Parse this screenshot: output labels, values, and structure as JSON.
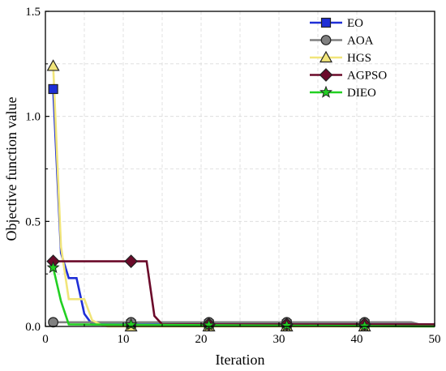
{
  "chart_data": {
    "type": "line",
    "title": "",
    "xlabel": "Iteration",
    "ylabel": "Objective function value",
    "xlim": [
      0,
      50
    ],
    "ylim": [
      0,
      1.5
    ],
    "xticks": [
      0,
      10,
      20,
      30,
      40,
      50
    ],
    "yticks": [
      0.0,
      0.5,
      1.0,
      1.5
    ],
    "xtick_labels": [
      "0",
      "10",
      "20",
      "30",
      "40",
      "50"
    ],
    "ytick_labels": [
      "0.0",
      "0.5",
      "1.0",
      "1.5"
    ],
    "grid": true,
    "legend_position": "top-right",
    "marker_x": [
      1,
      11,
      21,
      31,
      41
    ],
    "series": [
      {
        "name": "EO",
        "color": "#1f2fd6",
        "marker": "square",
        "x": [
          1,
          2,
          3,
          4,
          5,
          6,
          7,
          8,
          50
        ],
        "y": [
          1.13,
          0.35,
          0.23,
          0.23,
          0.06,
          0.01,
          0.01,
          0.01,
          0.01
        ]
      },
      {
        "name": "AOA",
        "color": "#808080",
        "marker": "circle",
        "x": [
          1,
          41,
          47,
          48,
          50
        ],
        "y": [
          0.02,
          0.02,
          0.02,
          0.01,
          0.01
        ]
      },
      {
        "name": "HGS",
        "color": "#f1e57a",
        "marker": "triangle",
        "x": [
          1,
          2,
          3,
          4,
          5,
          6,
          7,
          8,
          50
        ],
        "y": [
          1.24,
          0.38,
          0.13,
          0.13,
          0.13,
          0.03,
          0.01,
          0.0,
          0.0
        ]
      },
      {
        "name": "AGPSO",
        "color": "#6b0a2a",
        "marker": "diamond",
        "x": [
          1,
          12,
          13,
          14,
          15,
          50
        ],
        "y": [
          0.31,
          0.31,
          0.31,
          0.05,
          0.01,
          0.01
        ]
      },
      {
        "name": "DIEO",
        "color": "#22d022",
        "marker": "star",
        "x": [
          1,
          2,
          3,
          50
        ],
        "y": [
          0.28,
          0.12,
          0.01,
          0.0
        ]
      }
    ]
  }
}
